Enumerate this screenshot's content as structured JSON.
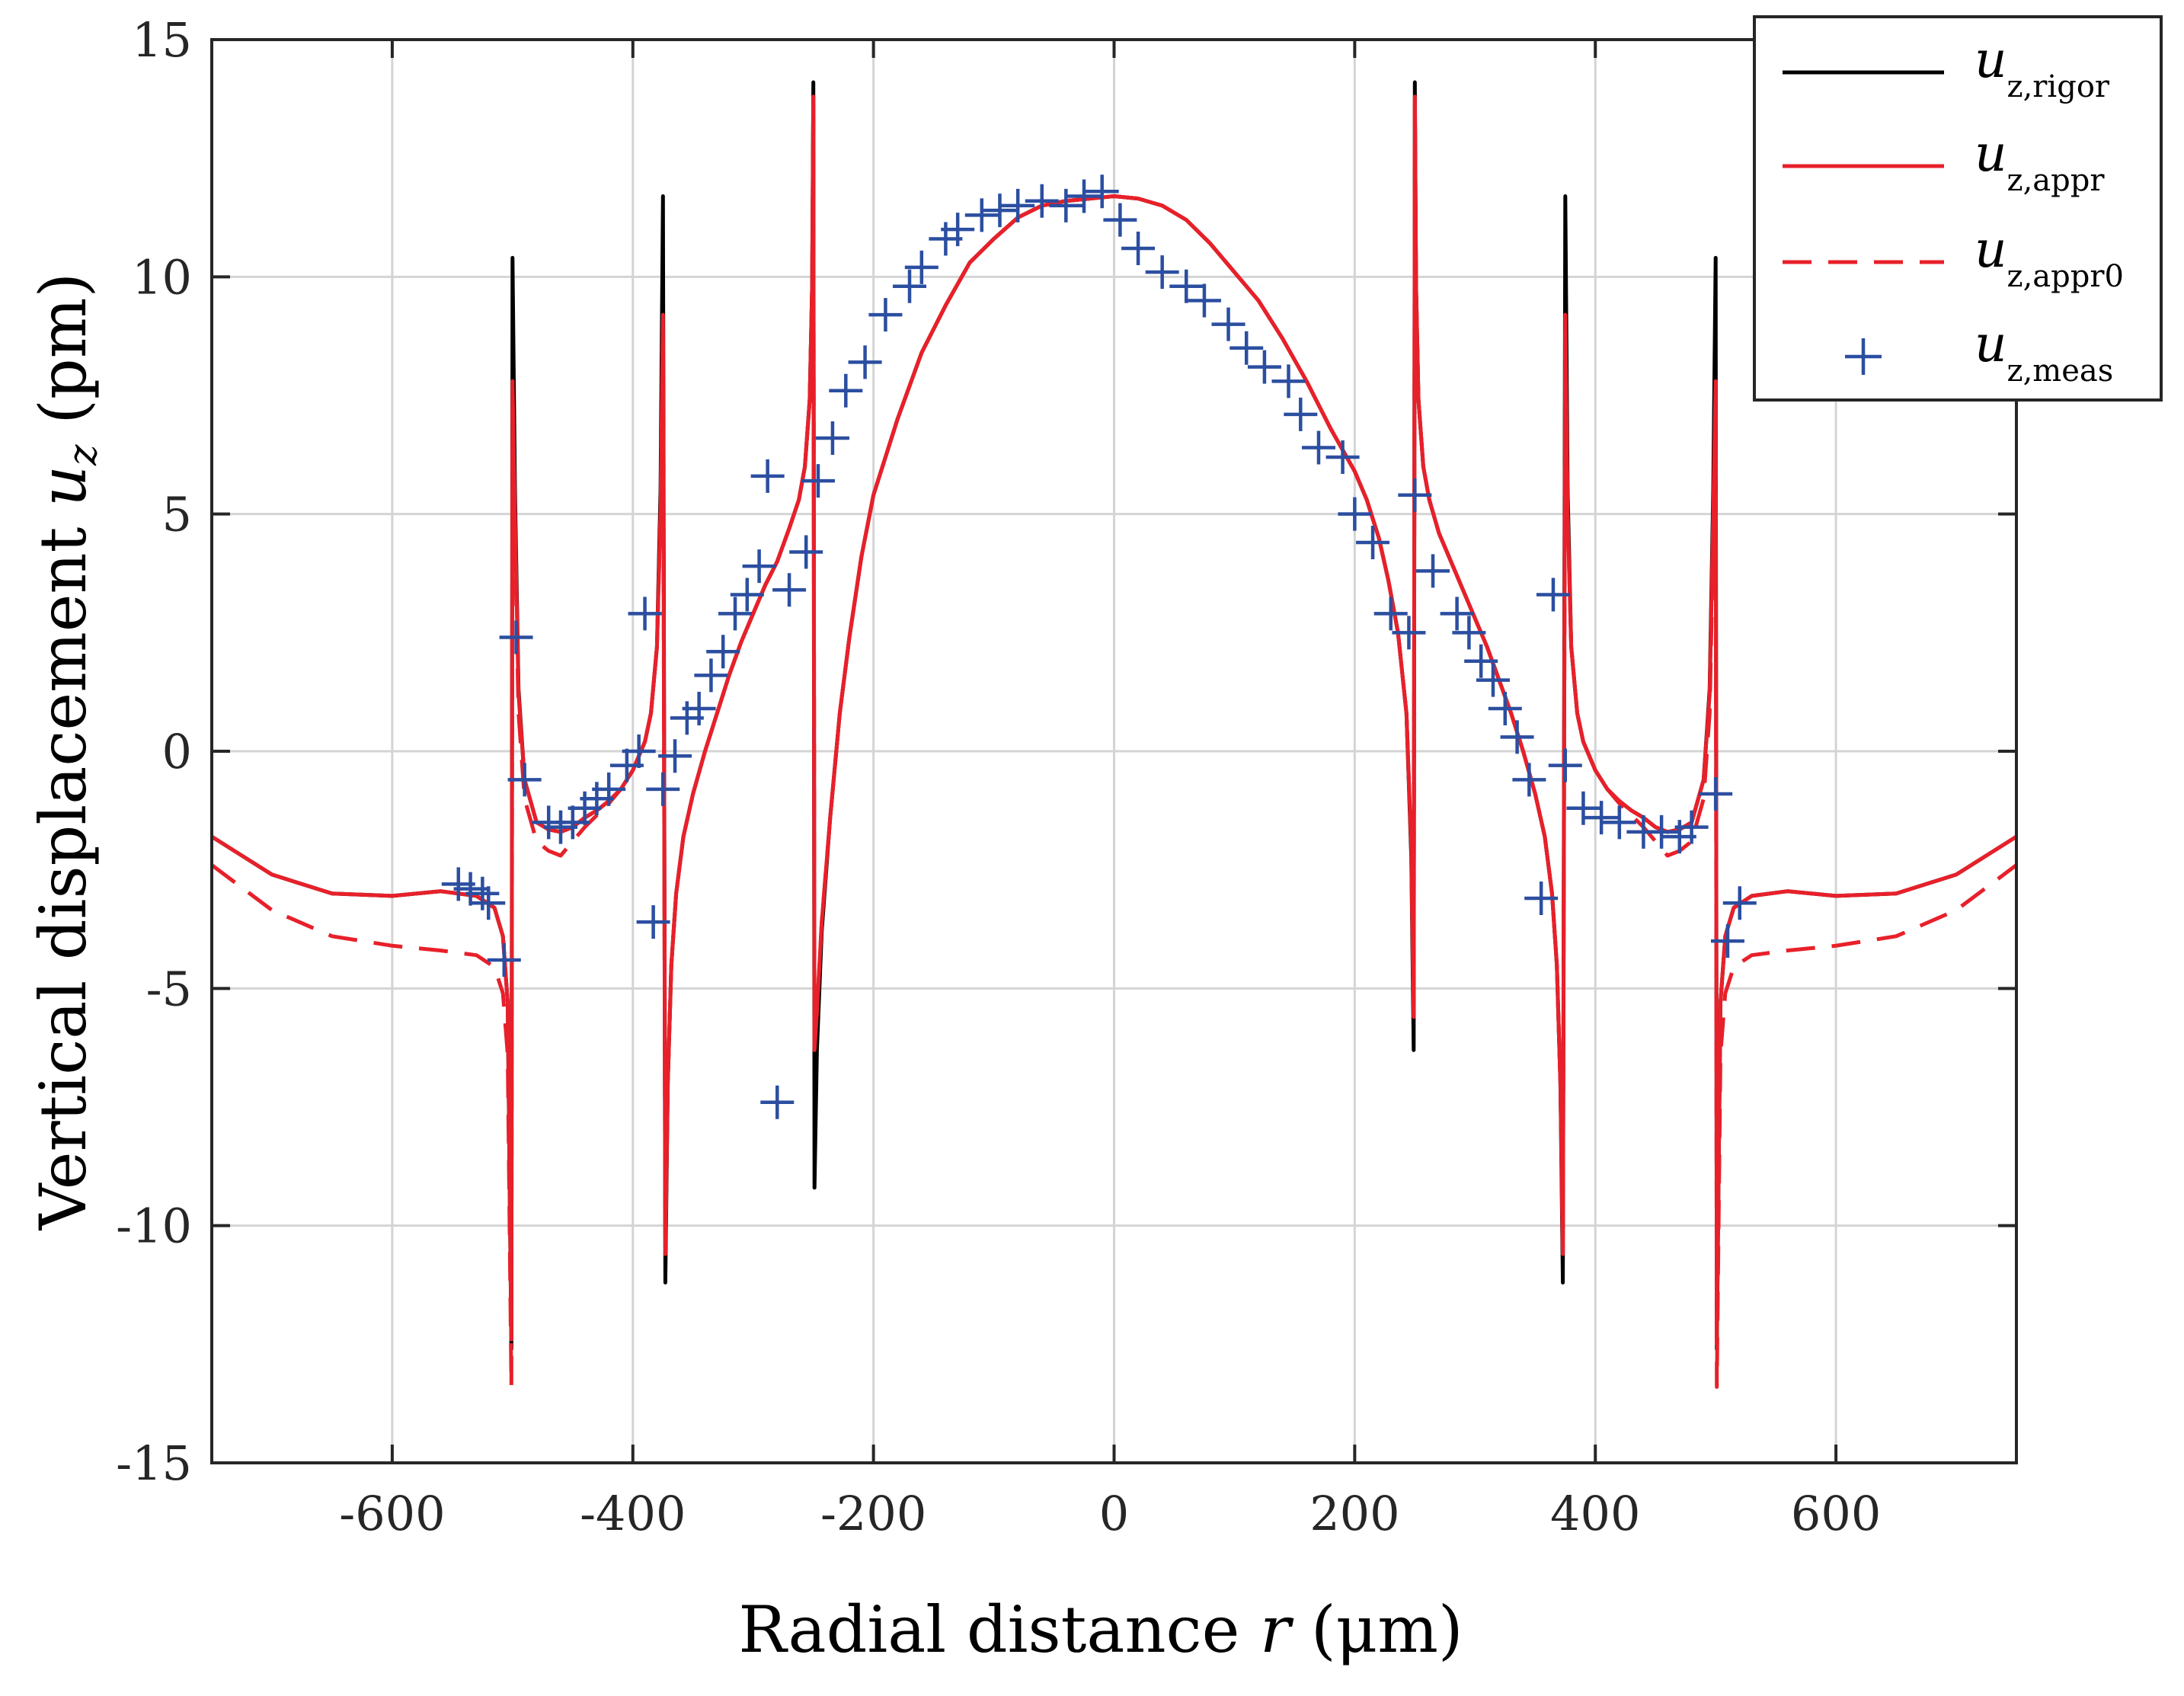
{
  "chart_data": {
    "type": "line",
    "title": "",
    "xlabel": {
      "prefix": "Radial distance ",
      "var": "r",
      "suffix": " (μm)"
    },
    "ylabel": {
      "prefix": "Vertical displacement ",
      "var": "u",
      "sub": "z",
      "suffix": " (pm)"
    },
    "xlim": [
      -750,
      750
    ],
    "ylim": [
      -15,
      15
    ],
    "xticks": [
      -600,
      -400,
      -200,
      0,
      200,
      400,
      600
    ],
    "yticks": [
      -15,
      -10,
      -5,
      0,
      5,
      10,
      15
    ],
    "grid": true,
    "legend_position": "top-right",
    "series": [
      {
        "name": "u_z,rigor",
        "label_main": "u",
        "label_sub": "z,rigor",
        "color": "#000000",
        "style": "solid",
        "x": [
          -750,
          -700,
          -650,
          -600,
          -560,
          -530,
          -515,
          -508,
          -504,
          -501,
          -500,
          -498,
          -495,
          -490,
          -480,
          -470,
          -460,
          -450,
          -440,
          -430,
          -420,
          -410,
          -400,
          -390,
          -385,
          -380,
          -377,
          -375,
          -373,
          -371,
          -368,
          -364,
          -358,
          -350,
          -340,
          -330,
          -320,
          -310,
          -300,
          -290,
          -280,
          -270,
          -262,
          -257,
          -253,
          -251,
          -250,
          -249,
          -247,
          -243,
          -236,
          -228,
          -220,
          -210,
          -200,
          -180,
          -160,
          -140,
          -120,
          -100,
          -80,
          -60,
          -40,
          -20,
          0,
          20,
          40,
          60,
          80,
          100,
          120,
          140,
          160,
          180,
          200,
          210,
          220,
          228,
          236,
          243,
          247,
          249,
          250,
          251,
          253,
          257,
          262,
          270,
          280,
          290,
          300,
          310,
          320,
          330,
          340,
          350,
          358,
          364,
          368,
          371,
          373,
          375,
          377,
          380,
          385,
          390,
          400,
          410,
          420,
          430,
          440,
          450,
          460,
          470,
          480,
          490,
          495,
          498,
          500,
          501,
          504,
          508,
          515,
          530,
          560,
          600,
          650,
          700,
          750
        ],
        "y": [
          -1.8,
          -2.6,
          -3.0,
          -3.05,
          -2.95,
          -3.05,
          -3.3,
          -3.9,
          -5.3,
          -12.6,
          10.4,
          5.5,
          1.3,
          -0.6,
          -1.5,
          -1.65,
          -1.7,
          -1.6,
          -1.4,
          -1.25,
          -1.05,
          -0.8,
          -0.4,
          0.2,
          0.8,
          2.2,
          5.5,
          11.7,
          -11.2,
          -7,
          -4.5,
          -3,
          -1.8,
          -0.9,
          0.0,
          0.8,
          1.6,
          2.3,
          2.9,
          3.5,
          4.0,
          4.7,
          5.3,
          6.0,
          7.4,
          9.8,
          14.1,
          -9.2,
          -6.3,
          -3.8,
          -1.4,
          0.8,
          2.4,
          4.1,
          5.4,
          7.0,
          8.4,
          9.4,
          10.3,
          10.8,
          11.25,
          11.5,
          11.6,
          11.65,
          11.7,
          11.65,
          11.5,
          11.2,
          10.7,
          10.1,
          9.5,
          8.7,
          7.8,
          6.8,
          5.9,
          5.3,
          4.5,
          3.6,
          2.5,
          0.8,
          -2.2,
          -6.3,
          14.1,
          9.8,
          7.4,
          6.0,
          5.3,
          4.6,
          4.0,
          3.4,
          2.8,
          2.2,
          1.5,
          0.8,
          0.0,
          -0.9,
          -1.8,
          -3,
          -4.5,
          -7,
          -11.2,
          11.7,
          5.5,
          2.2,
          0.8,
          0.2,
          -0.4,
          -0.8,
          -1.05,
          -1.25,
          -1.4,
          -1.6,
          -1.7,
          -1.65,
          -1.5,
          -0.6,
          1.3,
          5.5,
          10.4,
          -12.6,
          -5.3,
          -3.9,
          -3.3,
          -3.05,
          -2.95,
          -3.05,
          -3.0,
          -2.6,
          -1.8
        ]
      },
      {
        "name": "u_z,appr",
        "label_main": "u",
        "label_sub": "z,appr",
        "color": "#e8202a",
        "style": "solid",
        "x": [
          -750,
          -700,
          -650,
          -600,
          -560,
          -530,
          -515,
          -508,
          -504,
          -501,
          -500,
          -498,
          -495,
          -490,
          -480,
          -470,
          -460,
          -450,
          -440,
          -430,
          -420,
          -410,
          -400,
          -390,
          -385,
          -380,
          -377,
          -375,
          -373,
          -371,
          -368,
          -364,
          -358,
          -350,
          -340,
          -330,
          -320,
          -310,
          -300,
          -290,
          -280,
          -270,
          -262,
          -257,
          -253,
          -251,
          -250,
          -249,
          -247,
          -243,
          -236,
          -228,
          -220,
          -210,
          -200,
          -180,
          -160,
          -140,
          -120,
          -100,
          -80,
          -60,
          -40,
          -20,
          0,
          20,
          40,
          60,
          80,
          100,
          120,
          140,
          160,
          180,
          200,
          210,
          220,
          228,
          236,
          243,
          247,
          249,
          250,
          251,
          253,
          257,
          262,
          270,
          280,
          290,
          300,
          310,
          320,
          330,
          340,
          350,
          358,
          364,
          368,
          371,
          373,
          375,
          377,
          380,
          385,
          390,
          400,
          410,
          420,
          430,
          440,
          450,
          460,
          470,
          480,
          490,
          495,
          498,
          500,
          501,
          504,
          508,
          515,
          530,
          560,
          600,
          650,
          700,
          750
        ],
        "y": [
          -1.8,
          -2.6,
          -3.0,
          -3.05,
          -2.95,
          -3.05,
          -3.3,
          -3.9,
          -5.3,
          -12.4,
          7.8,
          5.0,
          1.2,
          -0.6,
          -1.5,
          -1.65,
          -1.7,
          -1.6,
          -1.4,
          -1.25,
          -1.05,
          -0.8,
          -0.4,
          0.2,
          0.8,
          2.2,
          5.0,
          9.2,
          -10.6,
          -7,
          -4.5,
          -3,
          -1.8,
          -0.9,
          0.0,
          0.8,
          1.6,
          2.3,
          2.9,
          3.5,
          4.0,
          4.7,
          5.3,
          6.0,
          7.4,
          9.8,
          13.8,
          -6.3,
          -5.5,
          -3.6,
          -1.4,
          0.8,
          2.4,
          4.1,
          5.4,
          7.0,
          8.4,
          9.4,
          10.3,
          10.8,
          11.25,
          11.5,
          11.6,
          11.65,
          11.7,
          11.65,
          11.5,
          11.2,
          10.7,
          10.1,
          9.5,
          8.7,
          7.8,
          6.8,
          5.9,
          5.3,
          4.5,
          3.6,
          2.5,
          0.8,
          -2.0,
          -5.6,
          13.8,
          9.8,
          7.4,
          6.0,
          5.3,
          4.6,
          4.0,
          3.4,
          2.8,
          2.2,
          1.5,
          0.8,
          0.0,
          -0.9,
          -1.8,
          -3,
          -4.5,
          -7,
          -10.6,
          9.2,
          5.0,
          2.2,
          0.8,
          0.2,
          -0.4,
          -0.8,
          -1.05,
          -1.25,
          -1.4,
          -1.6,
          -1.7,
          -1.65,
          -1.5,
          -0.6,
          1.2,
          5.0,
          7.8,
          -12.4,
          -5.3,
          -3.9,
          -3.3,
          -3.05,
          -2.95,
          -3.05,
          -3.0,
          -2.6,
          -1.8
        ]
      },
      {
        "name": "u_z,appr0",
        "label_main": "u",
        "label_sub": "z,appr0",
        "color": "#e8202a",
        "style": "dashed",
        "x": [
          -750,
          -700,
          -650,
          -600,
          -560,
          -530,
          -515,
          -508,
          -504,
          -501,
          -500,
          -498,
          -495,
          -490,
          -480,
          -470,
          -460,
          -450,
          -440,
          -430,
          -420,
          -410,
          -400,
          -390,
          -385,
          -380,
          -377,
          -375,
          -373,
          -371,
          -368,
          -364,
          -358,
          -350,
          -340,
          -330,
          -320,
          -310,
          -300,
          -290,
          -280,
          -270,
          -262,
          -257,
          -253,
          -251,
          -250,
          -249,
          -247,
          -243,
          -236,
          -228,
          -220,
          -210,
          -200,
          -180,
          -160,
          -140,
          -120,
          -100,
          -80,
          -60,
          -40,
          -20,
          0,
          20,
          40,
          60,
          80,
          100,
          120,
          140,
          160,
          180,
          200,
          210,
          220,
          228,
          236,
          243,
          247,
          249,
          250,
          251,
          253,
          257,
          262,
          270,
          280,
          290,
          300,
          310,
          320,
          330,
          340,
          350,
          358,
          364,
          368,
          371,
          373,
          375,
          377,
          380,
          385,
          390,
          400,
          410,
          420,
          430,
          440,
          450,
          460,
          470,
          480,
          490,
          495,
          498,
          500,
          501,
          504,
          508,
          515,
          530,
          560,
          600,
          650,
          700,
          750
        ],
        "y": [
          -2.4,
          -3.35,
          -3.9,
          -4.1,
          -4.2,
          -4.3,
          -4.55,
          -5.1,
          -6.4,
          -13.4,
          7.2,
          4.5,
          0.8,
          -1.0,
          -1.9,
          -2.1,
          -2.2,
          -1.9,
          -1.6,
          -1.35,
          -1.1,
          -0.8,
          -0.4,
          0.2,
          0.8,
          2.2,
          5.0,
          9.0,
          -10.6,
          -7,
          -4.5,
          -3,
          -1.8,
          -0.9,
          0.0,
          0.8,
          1.6,
          2.3,
          2.9,
          3.5,
          4.0,
          4.7,
          5.3,
          6.0,
          7.4,
          9.8,
          13.8,
          -6.3,
          -5.5,
          -3.6,
          -1.4,
          0.8,
          2.4,
          4.1,
          5.4,
          7.0,
          8.4,
          9.4,
          10.3,
          10.8,
          11.25,
          11.5,
          11.6,
          11.65,
          11.7,
          11.65,
          11.5,
          11.2,
          10.7,
          10.1,
          9.5,
          8.7,
          7.8,
          6.8,
          5.9,
          5.3,
          4.5,
          3.6,
          2.5,
          0.8,
          -2.0,
          -5.6,
          13.8,
          9.8,
          7.4,
          6.0,
          5.3,
          4.6,
          4.0,
          3.4,
          2.8,
          2.2,
          1.5,
          0.8,
          0.0,
          -0.9,
          -1.8,
          -3,
          -4.5,
          -7,
          -10.6,
          9.0,
          5.0,
          2.2,
          0.8,
          0.2,
          -0.4,
          -0.8,
          -1.1,
          -1.35,
          -1.6,
          -1.9,
          -2.2,
          -2.1,
          -1.9,
          -1.0,
          0.8,
          4.5,
          7.2,
          -13.4,
          -6.4,
          -5.1,
          -4.55,
          -4.3,
          -4.2,
          -4.1,
          -3.9,
          -3.35,
          -2.4
        ]
      },
      {
        "name": "u_z,meas",
        "label_main": "u",
        "label_sub": "z,meas",
        "color": "#2b4ea0",
        "style": "marker-plus",
        "x": [
          -545,
          -535,
          -525,
          -520,
          -507,
          -497,
          -490,
          -470,
          -460,
          -450,
          -440,
          -430,
          -420,
          -405,
          -395,
          -390,
          -383,
          -375,
          -365,
          -355,
          -345,
          -335,
          -325,
          -315,
          -305,
          -295,
          -288,
          -280,
          -270,
          -256,
          -246,
          -234,
          -223,
          -207,
          -190,
          -170,
          -160,
          -140,
          -130,
          -110,
          -95,
          -80,
          -60,
          -40,
          -25,
          -10,
          5,
          20,
          40,
          60,
          75,
          95,
          110,
          125,
          145,
          155,
          170,
          190,
          200,
          215,
          230,
          245,
          250,
          265,
          285,
          295,
          305,
          315,
          325,
          335,
          345,
          355,
          365,
          375,
          390,
          405,
          420,
          440,
          455,
          470,
          480,
          500,
          510,
          520
        ],
        "y": [
          -2.8,
          -2.9,
          -3.0,
          -3.2,
          -4.4,
          2.4,
          -0.6,
          -1.5,
          -1.6,
          -1.5,
          -1.2,
          -1.0,
          -0.8,
          -0.3,
          0.0,
          2.9,
          -3.6,
          -0.8,
          -0.1,
          0.7,
          0.9,
          1.6,
          2.1,
          2.9,
          3.3,
          3.9,
          5.8,
          -7.4,
          3.4,
          4.2,
          5.7,
          6.6,
          7.6,
          8.2,
          9.2,
          9.8,
          10.2,
          10.8,
          11.0,
          11.3,
          11.4,
          11.5,
          11.6,
          11.5,
          11.7,
          11.8,
          11.2,
          10.6,
          10.1,
          9.8,
          9.5,
          9.0,
          8.5,
          8.1,
          7.8,
          7.1,
          6.4,
          6.2,
          5.0,
          4.4,
          2.9,
          2.5,
          5.4,
          3.8,
          2.9,
          2.5,
          1.9,
          1.5,
          0.9,
          0.3,
          -0.6,
          -3.1,
          3.3,
          -0.3,
          -1.2,
          -1.4,
          -1.5,
          -1.7,
          -1.7,
          -1.8,
          -1.6,
          -0.9,
          -4.0,
          -3.2
        ]
      }
    ]
  }
}
